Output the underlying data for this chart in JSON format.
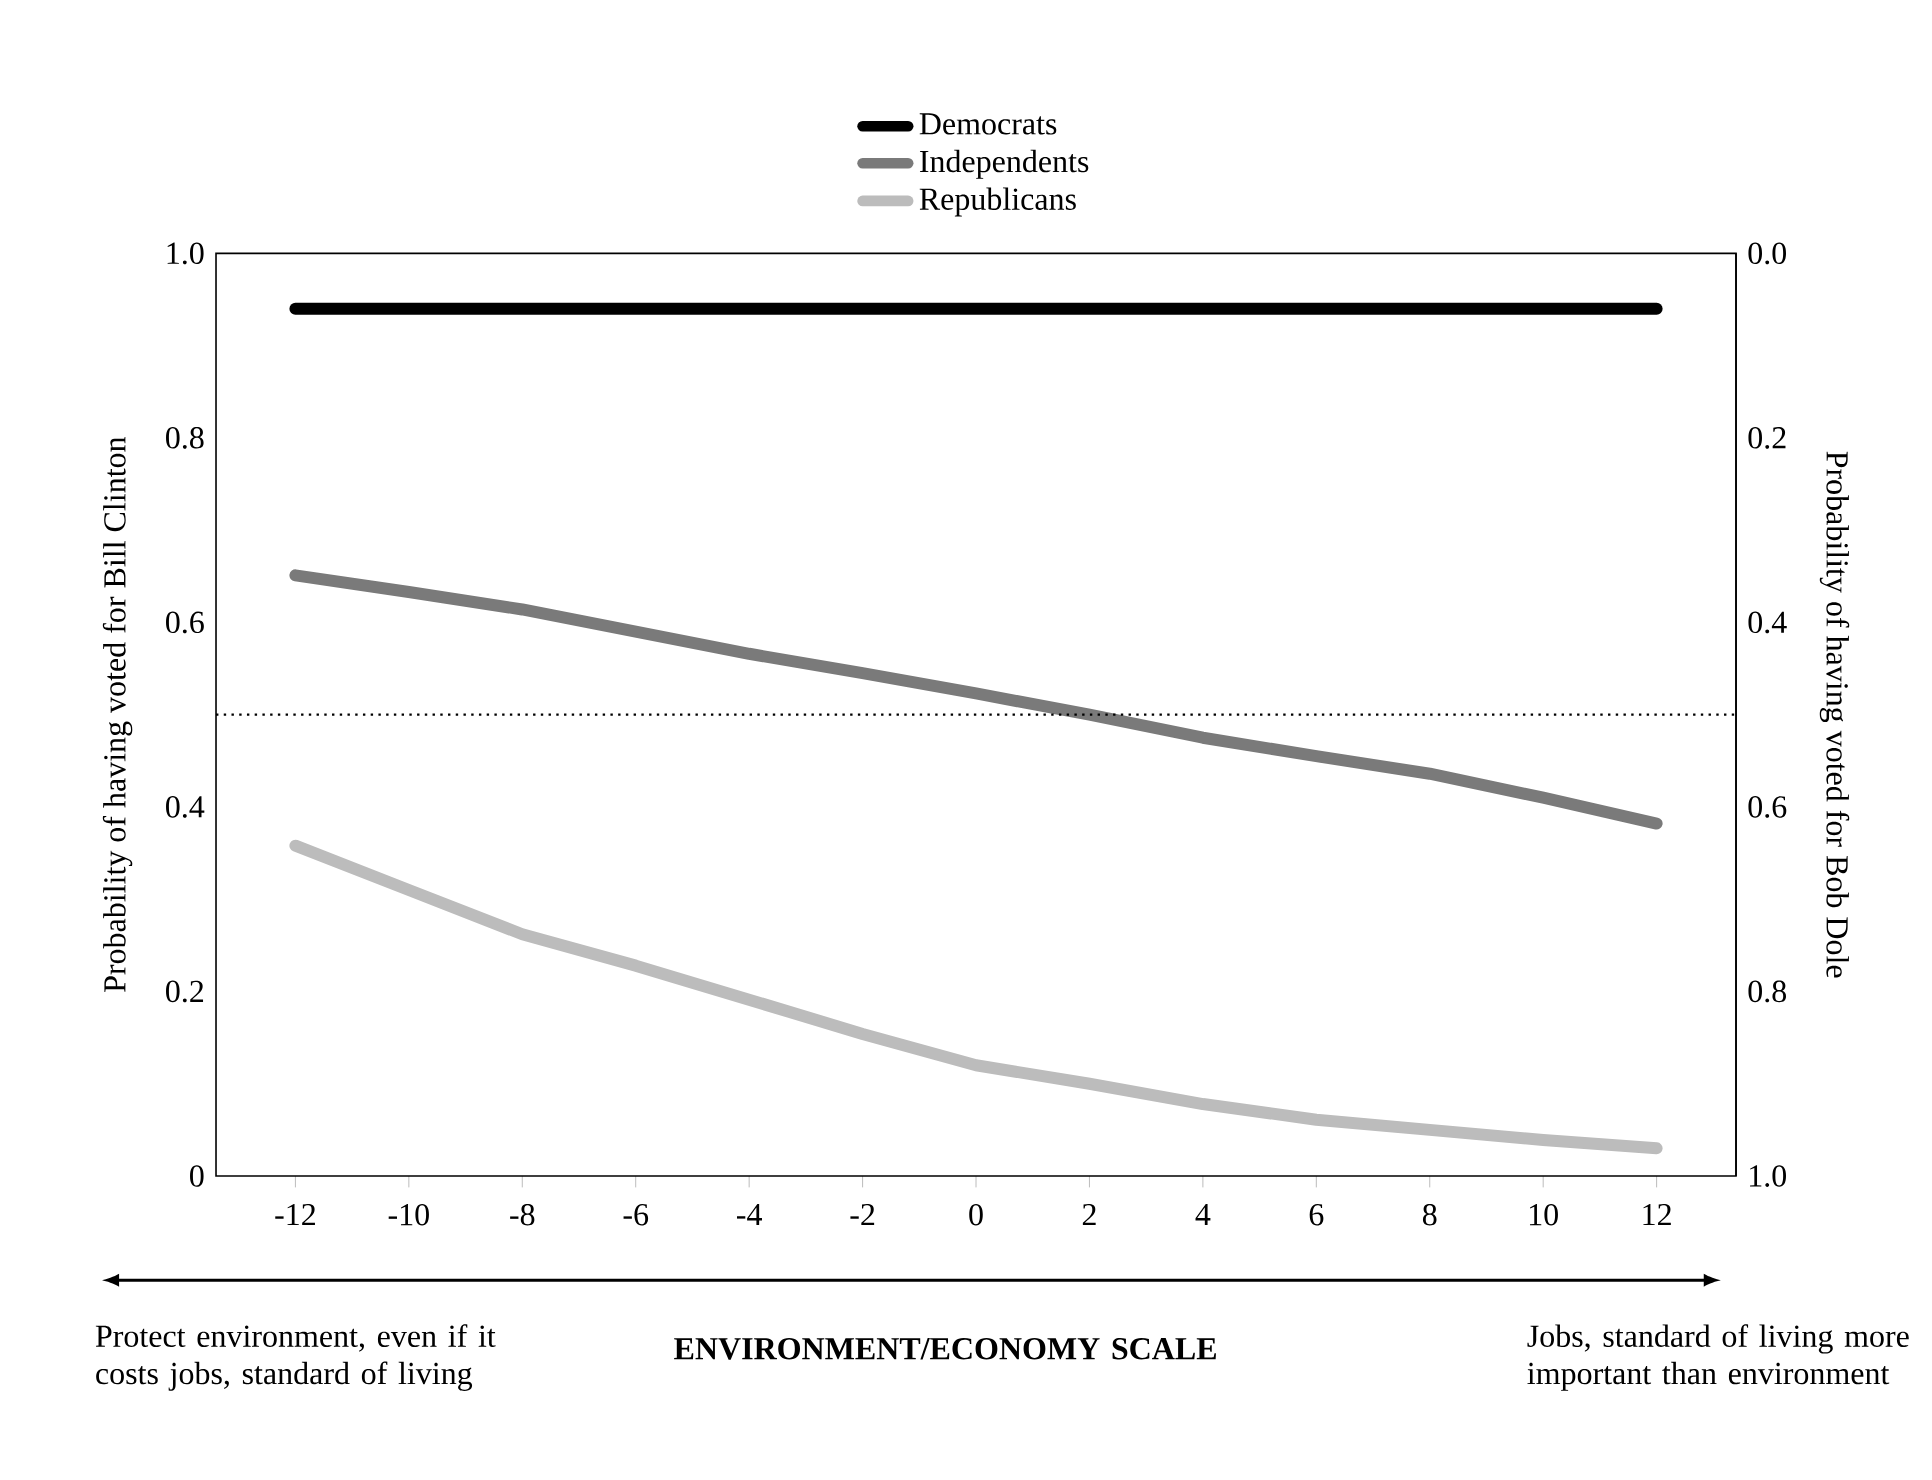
{
  "chart_data": {
    "type": "line",
    "x": [
      -12,
      -10,
      -8,
      -6,
      -4,
      -2,
      0,
      2,
      4,
      6,
      8,
      10,
      12
    ],
    "series": [
      {
        "name": "Democrats",
        "color": "#000000",
        "values": [
          0.94,
          0.94,
          0.94,
          0.94,
          0.94,
          0.94,
          0.94,
          0.94,
          0.94,
          0.94,
          0.94,
          0.94,
          0.94
        ]
      },
      {
        "name": "Independents",
        "color": "#7a7a7a",
        "values": [
          0.651,
          0.633,
          0.614,
          0.59,
          0.566,
          0.545,
          0.523,
          0.5,
          0.475,
          0.455,
          0.436,
          0.41,
          0.382
        ]
      },
      {
        "name": "Republicans",
        "color": "#bcbcbc",
        "values": [
          0.358,
          0.31,
          0.262,
          0.228,
          0.191,
          0.154,
          0.12,
          0.1,
          0.078,
          0.061,
          0.05,
          0.039,
          0.03
        ]
      }
    ],
    "xlabel": "ENVIRONMENT/ECONOMY SCALE",
    "ylabel": "Probability of having voted for Bill Clinton",
    "y2label": "Probability of having voted for Bob Dole",
    "xlim": [
      -13.4,
      13.4
    ],
    "ylim": [
      0,
      1
    ],
    "y2lim": [
      1,
      0
    ],
    "xticks": [
      -12,
      -10,
      -8,
      -6,
      -4,
      -2,
      0,
      2,
      4,
      6,
      8,
      10,
      12
    ],
    "yticks": [
      0,
      0.2,
      0.4,
      0.6,
      0.8,
      {
        "value": 1,
        "label": "1.0"
      }
    ],
    "y2ticks": [
      {
        "value": 0,
        "label": "0.0"
      },
      0.2,
      0.4,
      0.6,
      0.8,
      {
        "value": 1,
        "label": "1.0"
      }
    ],
    "ref_lines": [
      {
        "axis": "y",
        "value": 0.5,
        "line_style": "dotted"
      }
    ],
    "annotations": [
      "Protect environment, even if it costs jobs, standard of living",
      "Jobs, standard of living more important than environment"
    ],
    "legend": "top",
    "marker": "none"
  }
}
